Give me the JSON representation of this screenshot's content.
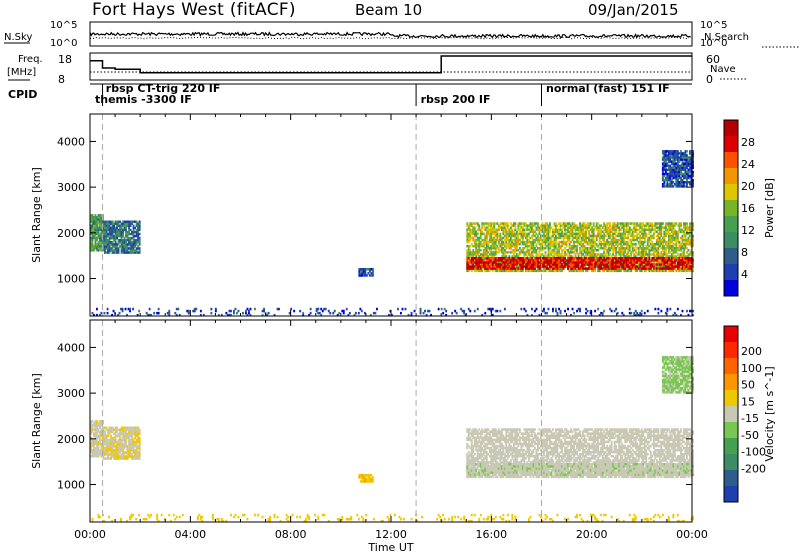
{
  "header": {
    "station": "Fort Hays West (fitACF)",
    "beam": "Beam 10",
    "date": "09/Jan/2015"
  },
  "aux": {
    "nsky_label": "N.Sky",
    "nsky_ticks": [
      "10^5",
      "10^0"
    ],
    "nsearch_label": "N.Search",
    "nsearch_ticks": [
      "10^5",
      "10^0"
    ],
    "freq_label_1": "Freq.",
    "freq_label_2": "[MHz]",
    "freq_ticks": [
      "18",
      "8"
    ],
    "nave_label": "Nave",
    "nave_ticks": [
      "60",
      "0"
    ],
    "cpid_label": "CPID"
  },
  "cpid_labels": [
    {
      "text": "rbsp CT-trig 220 IF",
      "t": 0.55
    },
    {
      "text": "themis -3300 IF",
      "t": 0.12
    },
    {
      "text": "rbsp 200 IF",
      "t": 13.1
    },
    {
      "text": "normal (fast) 151 IF",
      "t": 18.1
    }
  ],
  "mode_changes_ut": [
    0.5,
    13.0,
    18.0
  ],
  "x_axis": {
    "label": "Time UT",
    "ticks": [
      "00:00",
      "04:00",
      "08:00",
      "12:00",
      "16:00",
      "20:00",
      "00:00"
    ]
  },
  "panels": [
    {
      "id": "power",
      "ylabel": "Slant Range [km]",
      "yticks": [
        "1000",
        "2000",
        "3000",
        "4000"
      ],
      "colorbar_label": "Power [dB]",
      "colorbar_ticks": [
        "4",
        "8",
        "12",
        "16",
        "20",
        "24",
        "28"
      ],
      "colors": [
        "#0000dd",
        "#1e3fb0",
        "#2d5d8a",
        "#3c8c64",
        "#46a050",
        "#78b428",
        "#dcc800",
        "#f09600",
        "#ff5000",
        "#dc0000",
        "#b40000"
      ]
    },
    {
      "id": "velocity",
      "ylabel": "Slant Range [km]",
      "yticks": [
        "1000",
        "2000",
        "3000",
        "4000"
      ],
      "colorbar_label": "Velocity [m s^-1]",
      "colorbar_ticks": [
        "200",
        "100",
        "50",
        "15",
        "-15",
        "-50",
        "-100",
        "-200"
      ],
      "colors": [
        "#1e3fb0",
        "#2d5d8a",
        "#3c8c64",
        "#46a050",
        "#78c850",
        "#c8c8b4",
        "#f0c800",
        "#ff9600",
        "#ff6400",
        "#ff2800",
        "#e60000"
      ]
    }
  ],
  "chart_data": {
    "type": "heatmap",
    "title": "Fort Hays West (fitACF) Beam 10 09/Jan/2015",
    "xlabel": "Time UT",
    "ylabel": "Slant Range [km]",
    "xlim": [
      0,
      24
    ],
    "ylim": [
      180,
      4600
    ],
    "echo_bands": [
      {
        "t0": 0.0,
        "t1": 0.5,
        "r0": 1600,
        "r1": 2400,
        "power_db": 12,
        "velocity": -5
      },
      {
        "t0": 0.5,
        "t1": 2.0,
        "r0": 1550,
        "r1": 2250,
        "power_db": 8,
        "velocity": -10
      },
      {
        "t0": 10.7,
        "t1": 11.3,
        "r0": 1050,
        "r1": 1200,
        "power_db": 6,
        "velocity": -40
      },
      {
        "t0": 15.0,
        "t1": 24.0,
        "r0": 1150,
        "r1": 2200,
        "power_db": 16,
        "velocity": 0
      },
      {
        "t0": 15.0,
        "t1": 24.0,
        "r0": 1200,
        "r1": 1450,
        "power_db": 26,
        "velocity": 5
      },
      {
        "t0": 22.8,
        "t1": 24.0,
        "r0": 3000,
        "r1": 3800,
        "power_db": 6,
        "velocity": 20
      },
      {
        "t0": 0.0,
        "t1": 24.0,
        "r0": 180,
        "r1": 350,
        "power_db": 5,
        "velocity": -30
      }
    ],
    "freq_mhz": [
      {
        "t0": 0.0,
        "t1": 0.5,
        "value": 16
      },
      {
        "t0": 0.5,
        "t1": 1.0,
        "value": 13
      },
      {
        "t0": 1.0,
        "t1": 2.0,
        "value": 12.5
      },
      {
        "t0": 2.0,
        "t1": 14.0,
        "value": 11
      },
      {
        "t0": 14.0,
        "t1": 24.0,
        "value": 18
      }
    ],
    "nave": [
      {
        "t0": 0.0,
        "t1": 24.0,
        "value": 20
      }
    ],
    "nsky_log10": 2.0,
    "nsearch_log10": 0.5
  }
}
